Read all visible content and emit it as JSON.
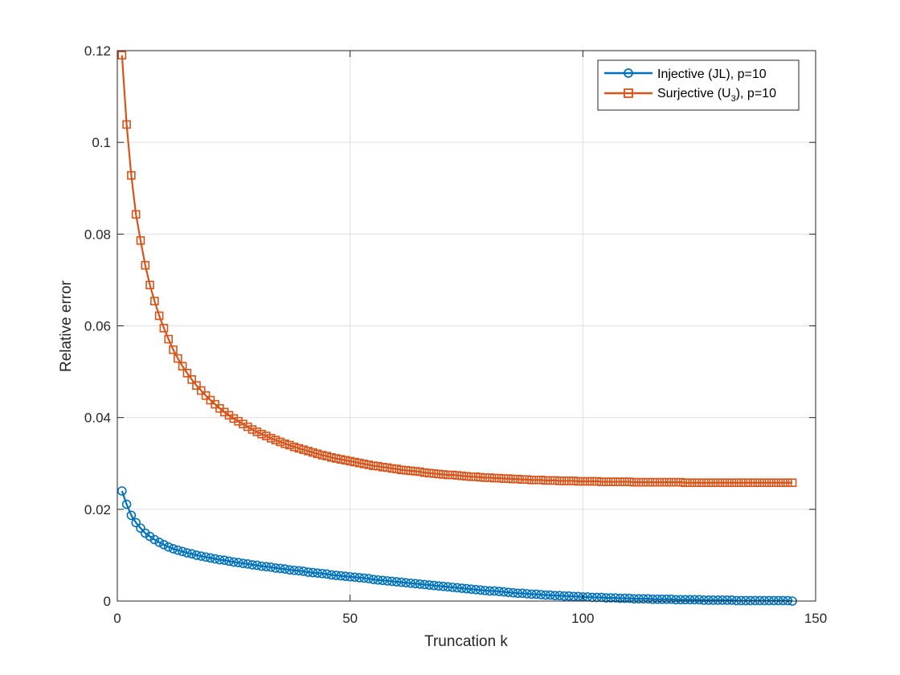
{
  "chart_data": {
    "type": "line",
    "title": "",
    "xlabel": "Truncation k",
    "ylabel": "Relative error",
    "xlim": [
      0,
      150
    ],
    "ylim": [
      0,
      0.12
    ],
    "xticks": [
      0,
      50,
      100,
      150
    ],
    "xtick_labels": [
      "0",
      "50",
      "100",
      "150"
    ],
    "yticks": [
      0,
      0.02,
      0.04,
      0.06,
      0.08,
      0.1,
      0.12
    ],
    "ytick_labels": [
      "0",
      "0.02",
      "0.04",
      "0.06",
      "0.08",
      "0.1",
      "0.12"
    ],
    "grid": true,
    "legend_position": "top-right",
    "x": {
      "start": 1,
      "end": 145,
      "step": 1
    },
    "series": [
      {
        "name": "Injective (JL), p=10",
        "legend_main": "Injective (JL), p=10",
        "color": "#0072BD",
        "marker": "circle",
        "values": [
          0.024,
          0.0211,
          0.0187,
          0.0171,
          0.0159,
          0.0148,
          0.0141,
          0.0134,
          0.0128,
          0.0123,
          0.0118,
          0.0114,
          0.0111,
          0.0108,
          0.0105,
          0.0103,
          0.01,
          0.0098,
          0.0096,
          0.0094,
          0.0092,
          0.009,
          0.0089,
          0.0087,
          0.0085,
          0.0084,
          0.0082,
          0.0081,
          0.0079,
          0.0078,
          0.0076,
          0.0075,
          0.0074,
          0.0072,
          0.0071,
          0.007,
          0.0068,
          0.0067,
          0.0066,
          0.0065,
          0.0063,
          0.0062,
          0.0061,
          0.006,
          0.0059,
          0.0057,
          0.0056,
          0.0055,
          0.0054,
          0.0053,
          0.0052,
          0.0051,
          0.005,
          0.0049,
          0.0047,
          0.0046,
          0.0045,
          0.0044,
          0.0043,
          0.0042,
          0.0041,
          0.004,
          0.0039,
          0.0038,
          0.0037,
          0.0036,
          0.0035,
          0.0034,
          0.0033,
          0.0032,
          0.0031,
          0.003,
          0.0029,
          0.0028,
          0.0027,
          0.0026,
          0.0025,
          0.0024,
          0.0023,
          0.0022,
          0.0022,
          0.0021,
          0.002,
          0.0019,
          0.0018,
          0.0017,
          0.0017,
          0.0016,
          0.0015,
          0.0015,
          0.0014,
          0.0013,
          0.0013,
          0.0012,
          0.0012,
          0.0011,
          0.0011,
          0.001,
          0.001,
          0.0009,
          0.0009,
          0.0008,
          0.0008,
          0.0008,
          0.0007,
          0.0007,
          0.0007,
          0.0006,
          0.0006,
          0.0006,
          0.0005,
          0.0005,
          0.0005,
          0.0005,
          0.0004,
          0.0004,
          0.0004,
          0.0004,
          0.0004,
          0.0003,
          0.0003,
          0.0003,
          0.0003,
          0.0003,
          0.0003,
          0.0002,
          0.0002,
          0.0002,
          0.0002,
          0.0002,
          0.0002,
          0.0002,
          0.0001,
          0.0001,
          0.0001,
          0.0001,
          0.0001,
          0.0001,
          0.0001,
          0.0001,
          0.0001,
          0.0001,
          0.0001,
          0.0001,
          0.0
        ]
      },
      {
        "name": "Surjective (U3), p=10",
        "legend_main": "Surjective (U",
        "legend_sub": "3",
        "legend_tail": "), p=10",
        "color": "#D95319",
        "marker": "square",
        "values": [
          0.119,
          0.1039,
          0.0928,
          0.0843,
          0.0786,
          0.0732,
          0.0689,
          0.0654,
          0.0622,
          0.0595,
          0.0571,
          0.0548,
          0.0529,
          0.0512,
          0.0497,
          0.0483,
          0.047,
          0.0459,
          0.0448,
          0.0438,
          0.0429,
          0.042,
          0.0412,
          0.0405,
          0.0398,
          0.0392,
          0.0386,
          0.038,
          0.0374,
          0.0369,
          0.0364,
          0.036,
          0.0355,
          0.0351,
          0.0347,
          0.0343,
          0.034,
          0.0336,
          0.0333,
          0.033,
          0.0327,
          0.0324,
          0.0321,
          0.0318,
          0.0316,
          0.0313,
          0.0311,
          0.0309,
          0.0307,
          0.0305,
          0.0303,
          0.0301,
          0.0299,
          0.0297,
          0.0295,
          0.0294,
          0.0292,
          0.0291,
          0.0289,
          0.0288,
          0.0286,
          0.0285,
          0.0284,
          0.0283,
          0.0282,
          0.028,
          0.0279,
          0.0278,
          0.0277,
          0.0276,
          0.0275,
          0.0275,
          0.0274,
          0.0273,
          0.0272,
          0.0271,
          0.0271,
          0.027,
          0.0269,
          0.0269,
          0.0268,
          0.0268,
          0.0267,
          0.0267,
          0.0266,
          0.0266,
          0.0265,
          0.0265,
          0.0264,
          0.0264,
          0.0264,
          0.0263,
          0.0263,
          0.0263,
          0.0262,
          0.0262,
          0.0262,
          0.0262,
          0.0261,
          0.0261,
          0.0261,
          0.0261,
          0.0261,
          0.026,
          0.026,
          0.026,
          0.026,
          0.026,
          0.026,
          0.026,
          0.0259,
          0.0259,
          0.0259,
          0.0259,
          0.0259,
          0.0259,
          0.0259,
          0.0259,
          0.0259,
          0.0259,
          0.0259,
          0.0258,
          0.0258,
          0.0258,
          0.0258,
          0.0258,
          0.0258,
          0.0258,
          0.0258,
          0.0258,
          0.0258,
          0.0258,
          0.0258,
          0.0258,
          0.0258,
          0.0258,
          0.0258,
          0.0258,
          0.0258,
          0.0258,
          0.0258,
          0.0258,
          0.0258,
          0.0258,
          0.0258
        ]
      }
    ]
  }
}
